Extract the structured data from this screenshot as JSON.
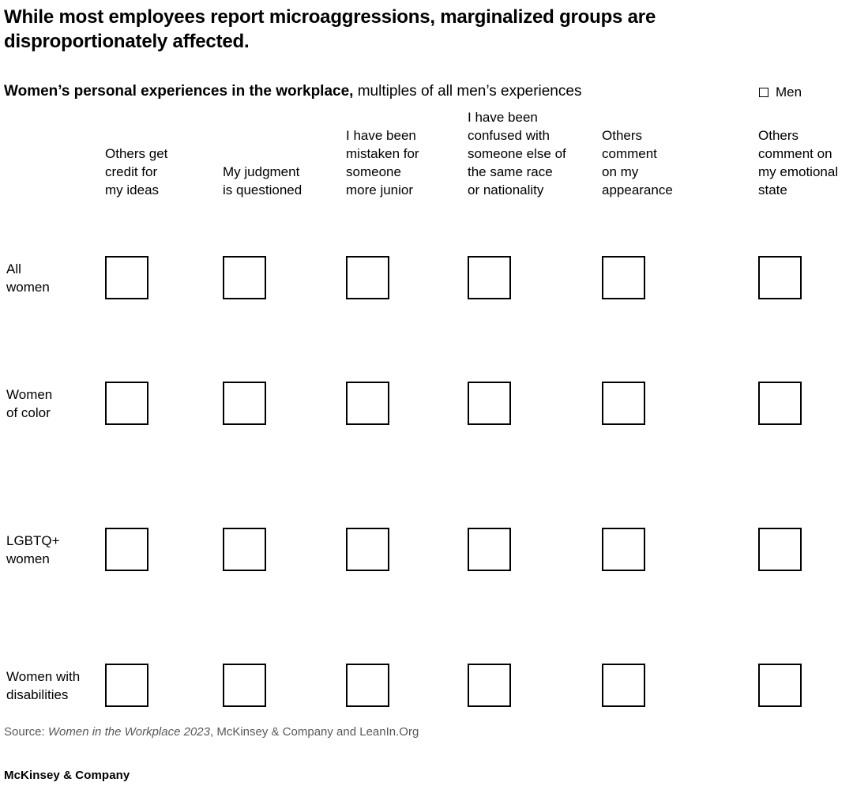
{
  "header": {
    "title_line1": "While most employees report microaggressions, marginalized groups are",
    "title_line2": "disproportionately affected."
  },
  "subtitle": {
    "bold": "Women’s personal experiences in the workplace,",
    "rest": " multiples of all men’s experiences"
  },
  "legend": {
    "men_label": "Men"
  },
  "columns": [
    {
      "label": "Others get credit for my ideas",
      "lines": [
        "Others get",
        "credit for",
        "my ideas"
      ]
    },
    {
      "label": "My judgment is questioned",
      "lines": [
        "My judgment",
        "is questioned"
      ]
    },
    {
      "label": "I have been mistaken for someone more junior",
      "lines": [
        "I have been",
        "mistaken for",
        "someone",
        "more junior"
      ]
    },
    {
      "label": "I have been confused with someone else of the same race or nationality",
      "lines": [
        "I have been",
        "confused with",
        "someone else of",
        "the same race",
        "or nationality"
      ]
    },
    {
      "label": "Others comment on my appearance",
      "lines": [
        "Others",
        "comment",
        "on my",
        "appearance"
      ]
    },
    {
      "label": "Others comment on my emotional state",
      "lines": [
        "Others",
        "comment on",
        "my emotional",
        "state"
      ]
    }
  ],
  "rows": [
    {
      "label": "All women",
      "lines": [
        "All",
        "women"
      ]
    },
    {
      "label": "Women of color",
      "lines": [
        "Women",
        "of color"
      ]
    },
    {
      "label": "LGBTQ+ women",
      "lines": [
        "LGBTQ+",
        "women"
      ]
    },
    {
      "label": "Women with disabilities",
      "lines": [
        "Women with",
        "disabilities"
      ]
    }
  ],
  "source": {
    "prefix": "Source: ",
    "work_italic": "Women in the Workplace 2023",
    "suffix": ", McKinsey & Company and LeanIn.Org"
  },
  "footer": {
    "brand": "McKinsey & Company"
  },
  "colors": {
    "text": "#000000",
    "muted_text": "#595959",
    "square_border": "#000000",
    "background": "#ffffff"
  },
  "chart_data": {
    "type": "table",
    "title": "While most employees report microaggressions, marginalized groups are disproportionately affected.",
    "subtitle": "Women’s personal experiences in the workplace, multiples of all men’s experiences",
    "columns": [
      "Others get credit for my ideas",
      "My judgment is questioned",
      "I have been mistaken for someone more junior",
      "I have been confused with someone else of the same race or nationality",
      "Others comment on my appearance",
      "Others comment on my emotional state"
    ],
    "rows": [
      "All women",
      "Women of color",
      "LGBTQ+ women",
      "Women with disabilities"
    ],
    "legend_entries": [
      "Men"
    ],
    "legend_position": "top-right",
    "cell_marker": "empty outlined square (men’s baseline) in every row-by-column cell",
    "values_shown": false,
    "grid": false,
    "source": "Source: Women in the Workplace 2023, McKinsey & Company and LeanIn.Org"
  }
}
